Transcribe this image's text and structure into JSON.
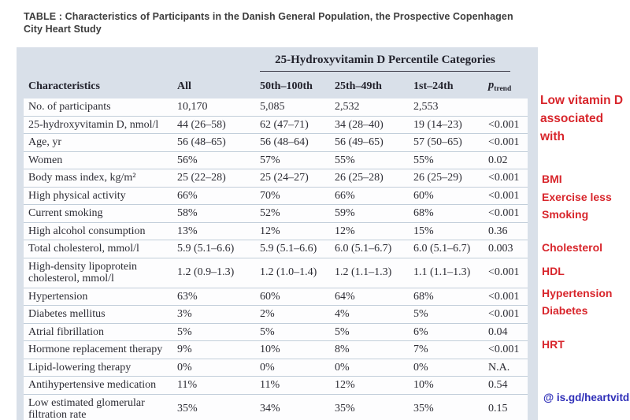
{
  "title": "TABLE : Characteristics of Participants in the Danish General Population, the Prospective Copenhagen City Heart Study",
  "table": {
    "span_header": "25-Hydroxyvitamin D Percentile Categories",
    "columns": [
      "Characteristics",
      "All",
      "50th–100th",
      "25th–49th",
      "1st–24th"
    ],
    "p_header": {
      "symbol": "p",
      "subscript": "trend"
    },
    "rows": [
      {
        "cells": [
          "No. of participants",
          "10,170",
          "5,085",
          "2,532",
          "2,553",
          ""
        ]
      },
      {
        "cells": [
          "25-hydroxyvitamin D, nmol/l",
          "44 (26–58)",
          "62 (47–71)",
          "34 (28–40)",
          "19 (14–23)",
          "<0.001"
        ]
      },
      {
        "cells": [
          "Age, yr",
          "56 (48–65)",
          "56 (48–64)",
          "56 (49–65)",
          "57 (50–65)",
          "<0.001"
        ]
      },
      {
        "cells": [
          "Women",
          "56%",
          "57%",
          "55%",
          "55%",
          "0.02"
        ]
      },
      {
        "cells": [
          "Body mass index, kg/m²",
          "25 (22–28)",
          "25 (24–27)",
          "26 (25–28)",
          "26 (25–29)",
          "<0.001"
        ]
      },
      {
        "cells": [
          "High physical activity",
          "66%",
          "70%",
          "66%",
          "60%",
          "<0.001"
        ]
      },
      {
        "cells": [
          "Current smoking",
          "58%",
          "52%",
          "59%",
          "68%",
          "<0.001"
        ]
      },
      {
        "cells": [
          "High alcohol consumption",
          "13%",
          "12%",
          "12%",
          "15%",
          "0.36"
        ]
      },
      {
        "cells": [
          "Total cholesterol, mmol/l",
          "5.9 (5.1–6.6)",
          "5.9 (5.1–6.6)",
          "6.0 (5.1–6.7)",
          "6.0 (5.1–6.7)",
          "0.003"
        ]
      },
      {
        "cells": [
          "High-density lipoprotein cholesterol, mmol/l",
          "1.2 (0.9–1.3)",
          "1.2 (1.0–1.4)",
          "1.2 (1.1–1.3)",
          "1.1 (1.1–1.3)",
          "<0.001"
        ]
      },
      {
        "cells": [
          "Hypertension",
          "63%",
          "60%",
          "64%",
          "68%",
          "<0.001"
        ]
      },
      {
        "cells": [
          "Diabetes mellitus",
          "3%",
          "2%",
          "4%",
          "5%",
          "<0.001"
        ]
      },
      {
        "cells": [
          "Atrial fibrillation",
          "5%",
          "5%",
          "5%",
          "6%",
          "0.04"
        ]
      },
      {
        "cells": [
          "Hormone replacement therapy",
          "9%",
          "10%",
          "8%",
          "7%",
          "<0.001"
        ]
      },
      {
        "cells": [
          "Lipid-lowering therapy",
          "0%",
          "0%",
          "0%",
          "0%",
          "N.A."
        ]
      },
      {
        "cells": [
          "Antihypertensive medication",
          "11%",
          "11%",
          "12%",
          "10%",
          "0.54"
        ]
      },
      {
        "cells": [
          "Low estimated glomerular filtration rate",
          "35%",
          "34%",
          "35%",
          "35%",
          "0.15"
        ]
      }
    ]
  },
  "annotations": {
    "headline": "Low vitamin D\nassociated with",
    "items": [
      "BMI",
      "Exercise less",
      "Smoking",
      "Cholesterol",
      "HDL",
      "Hypertension",
      "Diabetes",
      "HRT"
    ],
    "link": "@ is.gd/heartvitd"
  },
  "colors": {
    "annotation_red": "#d8262c",
    "link_blue": "#2e2eb8",
    "table_band": "#d9e0e9",
    "row_background": "#fdfdfe",
    "row_separator": "#c2ceda",
    "text_dark": "#2c2c34"
  }
}
